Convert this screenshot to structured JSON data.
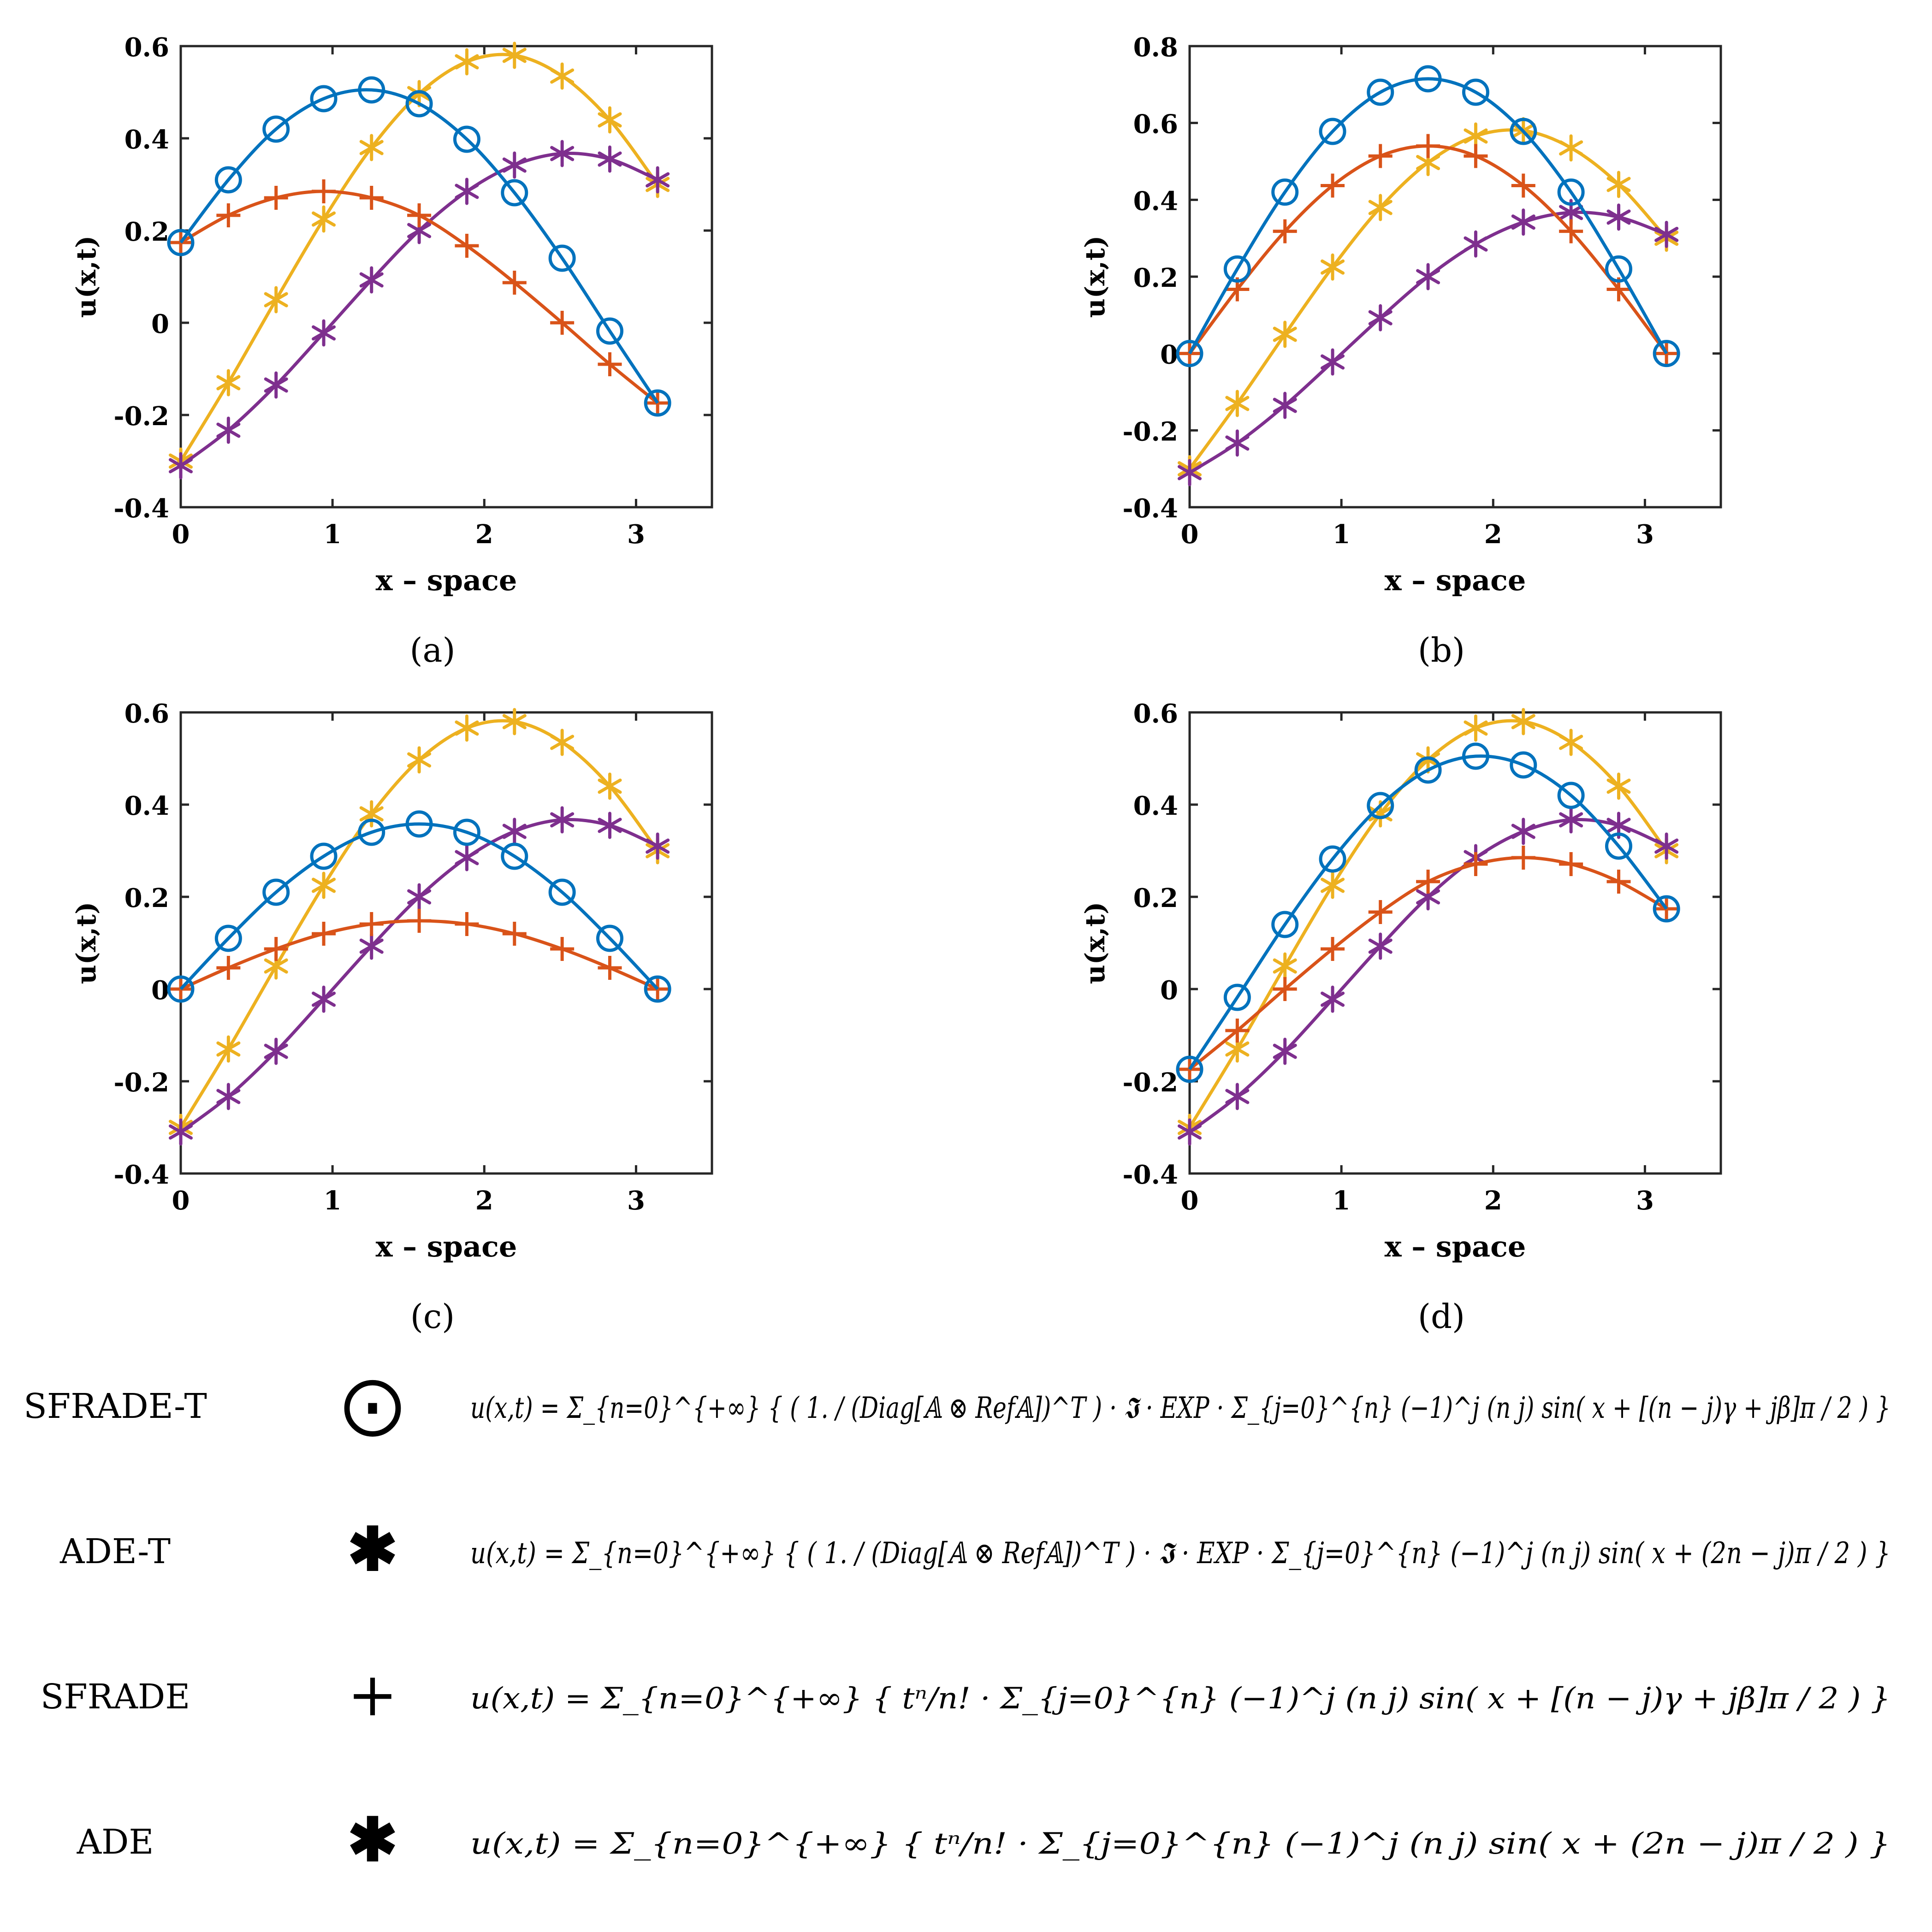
{
  "figure": {
    "series_meta": [
      {
        "name": "SFRADE-T",
        "marker": "circle",
        "color": "#0072BD"
      },
      {
        "name": "SFRADE",
        "marker": "plus",
        "color": "#D95319"
      },
      {
        "name": "ADE-T",
        "marker": "asterisk",
        "color": "#EDB120"
      },
      {
        "name": "ADE",
        "marker": "asterisk",
        "color": "#7E2F8E"
      }
    ],
    "legend": [
      {
        "name": "SFRADE-T",
        "symbol": "⨀",
        "formula": "u(x,t) = Σ_{n=0}^{+∞} { ( 1. / (Diag[𝔸 ⊗ Ref𝔸])^T ) · 𝕴 · EXP · Σ_{j=0}^{n} (−1)^j (n j) sin( x + [(n − j)γ + jβ]π / 2 ) }"
      },
      {
        "name": "ADE-T",
        "symbol": "✱",
        "formula": "u(x,t) = Σ_{n=0}^{+∞} { ( 1. / (Diag[𝔸 ⊗ Ref𝔸])^T ) · 𝕴 · EXP · Σ_{j=0}^{n} (−1)^j (n j) sin( x + (2n − j)π / 2 ) }"
      },
      {
        "name": "SFRADE",
        "symbol": "+",
        "formula": "u(x,t) = Σ_{n=0}^{+∞} { tⁿ/n! · Σ_{j=0}^{n} (−1)^j (n j) sin( x + [(n − j)γ + jβ]π / 2 ) }"
      },
      {
        "name": "ADE",
        "symbol": "✱",
        "formula": "u(x,t) = Σ_{n=0}^{+∞} { tⁿ/n! · Σ_{j=0}^{n} (−1)^j (n j) sin( x + (2n − j)π / 2 ) }"
      }
    ]
  },
  "chart_data": [
    {
      "type": "line",
      "panel_label": "(a)",
      "xlabel": "x – space",
      "ylabel": "u(x,t)",
      "xlim": [
        0,
        3.5
      ],
      "ylim": [
        -0.4,
        0.6
      ],
      "xticks": [
        0,
        1,
        2,
        3
      ],
      "xtick_labels": [
        "0",
        "1",
        "2",
        "3"
      ],
      "yticks": [
        -0.4,
        -0.2,
        0,
        0.2,
        0.4,
        0.6
      ],
      "ytick_labels": [
        "-0.4",
        "-0.2",
        "0",
        "0.2",
        "0.4",
        "0.6"
      ],
      "x": [
        0,
        0.314,
        0.628,
        0.942,
        1.257,
        1.571,
        1.885,
        2.199,
        2.513,
        2.827,
        3.142
      ],
      "series": [
        {
          "name": "SFRADE-T",
          "values": [
            0.174,
            0.31,
            0.42,
            0.486,
            0.505,
            0.475,
            0.398,
            0.282,
            0.14,
            -0.018,
            -0.174
          ]
        },
        {
          "name": "SFRADE",
          "values": [
            0.174,
            0.233,
            0.271,
            0.285,
            0.271,
            0.233,
            0.167,
            0.087,
            0.0,
            -0.09,
            -0.174
          ]
        },
        {
          "name": "ADE-T",
          "values": [
            -0.3,
            -0.13,
            0.05,
            0.225,
            0.38,
            0.497,
            0.566,
            0.58,
            0.535,
            0.44,
            0.3
          ]
        },
        {
          "name": "ADE",
          "values": [
            -0.31,
            -0.233,
            -0.135,
            -0.022,
            0.093,
            0.2,
            0.285,
            0.342,
            0.367,
            0.355,
            0.31
          ]
        }
      ]
    },
    {
      "type": "line",
      "panel_label": "(b)",
      "xlabel": "x – space",
      "ylabel": "u(x,t)",
      "xlim": [
        0,
        3.5
      ],
      "ylim": [
        -0.4,
        0.8
      ],
      "xticks": [
        0,
        1,
        2,
        3
      ],
      "xtick_labels": [
        "0",
        "1",
        "2",
        "3"
      ],
      "yticks": [
        -0.4,
        -0.2,
        0,
        0.2,
        0.4,
        0.6,
        0.8
      ],
      "ytick_labels": [
        "-0.4",
        "-0.2",
        "0",
        "0.2",
        "0.4",
        "0.6",
        "0.8"
      ],
      "x": [
        0,
        0.314,
        0.628,
        0.942,
        1.257,
        1.571,
        1.885,
        2.199,
        2.513,
        2.827,
        3.142
      ],
      "series": [
        {
          "name": "SFRADE-T",
          "values": [
            0.0,
            0.22,
            0.42,
            0.578,
            0.68,
            0.715,
            0.68,
            0.578,
            0.42,
            0.22,
            0.0
          ]
        },
        {
          "name": "SFRADE",
          "values": [
            0.0,
            0.167,
            0.318,
            0.437,
            0.514,
            0.54,
            0.514,
            0.437,
            0.318,
            0.167,
            0.0
          ]
        },
        {
          "name": "ADE-T",
          "values": [
            -0.3,
            -0.13,
            0.05,
            0.225,
            0.38,
            0.497,
            0.566,
            0.58,
            0.535,
            0.44,
            0.3
          ]
        },
        {
          "name": "ADE",
          "values": [
            -0.31,
            -0.233,
            -0.135,
            -0.022,
            0.093,
            0.2,
            0.285,
            0.342,
            0.367,
            0.355,
            0.31
          ]
        }
      ]
    },
    {
      "type": "line",
      "panel_label": "(c)",
      "xlabel": "x – space",
      "ylabel": "u(x,t)",
      "xlim": [
        0,
        3.5
      ],
      "ylim": [
        -0.4,
        0.6
      ],
      "xticks": [
        0,
        1,
        2,
        3
      ],
      "xtick_labels": [
        "0",
        "1",
        "2",
        "3"
      ],
      "yticks": [
        -0.4,
        -0.2,
        0,
        0.2,
        0.4,
        0.6
      ],
      "ytick_labels": [
        "-0.4",
        "-0.2",
        "0",
        "0.2",
        "0.4",
        "0.6"
      ],
      "x": [
        0,
        0.314,
        0.628,
        0.942,
        1.257,
        1.571,
        1.885,
        2.199,
        2.513,
        2.827,
        3.142
      ],
      "series": [
        {
          "name": "SFRADE-T",
          "values": [
            0.0,
            0.11,
            0.21,
            0.288,
            0.34,
            0.358,
            0.34,
            0.288,
            0.21,
            0.11,
            0.0
          ]
        },
        {
          "name": "SFRADE",
          "values": [
            0.0,
            0.046,
            0.087,
            0.12,
            0.141,
            0.148,
            0.141,
            0.12,
            0.087,
            0.046,
            0.0
          ]
        },
        {
          "name": "ADE-T",
          "values": [
            -0.3,
            -0.13,
            0.05,
            0.225,
            0.38,
            0.497,
            0.566,
            0.58,
            0.535,
            0.44,
            0.3
          ]
        },
        {
          "name": "ADE",
          "values": [
            -0.31,
            -0.233,
            -0.135,
            -0.022,
            0.093,
            0.2,
            0.285,
            0.342,
            0.367,
            0.355,
            0.31
          ]
        }
      ]
    },
    {
      "type": "line",
      "panel_label": "(d)",
      "xlabel": "x – space",
      "ylabel": "u(x,t)",
      "xlim": [
        0,
        3.5
      ],
      "ylim": [
        -0.4,
        0.6
      ],
      "xticks": [
        0,
        1,
        2,
        3
      ],
      "xtick_labels": [
        "0",
        "1",
        "2",
        "3"
      ],
      "yticks": [
        -0.4,
        -0.2,
        0,
        0.2,
        0.4,
        0.6
      ],
      "ytick_labels": [
        "-0.4",
        "-0.2",
        "0",
        "0.2",
        "0.4",
        "0.6"
      ],
      "x": [
        0,
        0.314,
        0.628,
        0.942,
        1.257,
        1.571,
        1.885,
        2.199,
        2.513,
        2.827,
        3.142
      ],
      "series": [
        {
          "name": "SFRADE-T",
          "values": [
            -0.174,
            -0.018,
            0.14,
            0.282,
            0.398,
            0.475,
            0.505,
            0.486,
            0.42,
            0.31,
            0.174
          ]
        },
        {
          "name": "SFRADE",
          "values": [
            -0.174,
            -0.09,
            0.0,
            0.087,
            0.167,
            0.233,
            0.271,
            0.285,
            0.271,
            0.233,
            0.174
          ]
        },
        {
          "name": "ADE-T",
          "values": [
            -0.3,
            -0.13,
            0.05,
            0.225,
            0.38,
            0.497,
            0.566,
            0.58,
            0.535,
            0.44,
            0.3
          ]
        },
        {
          "name": "ADE",
          "values": [
            -0.31,
            -0.233,
            -0.135,
            -0.022,
            0.093,
            0.2,
            0.285,
            0.342,
            0.367,
            0.355,
            0.31
          ]
        }
      ]
    }
  ]
}
